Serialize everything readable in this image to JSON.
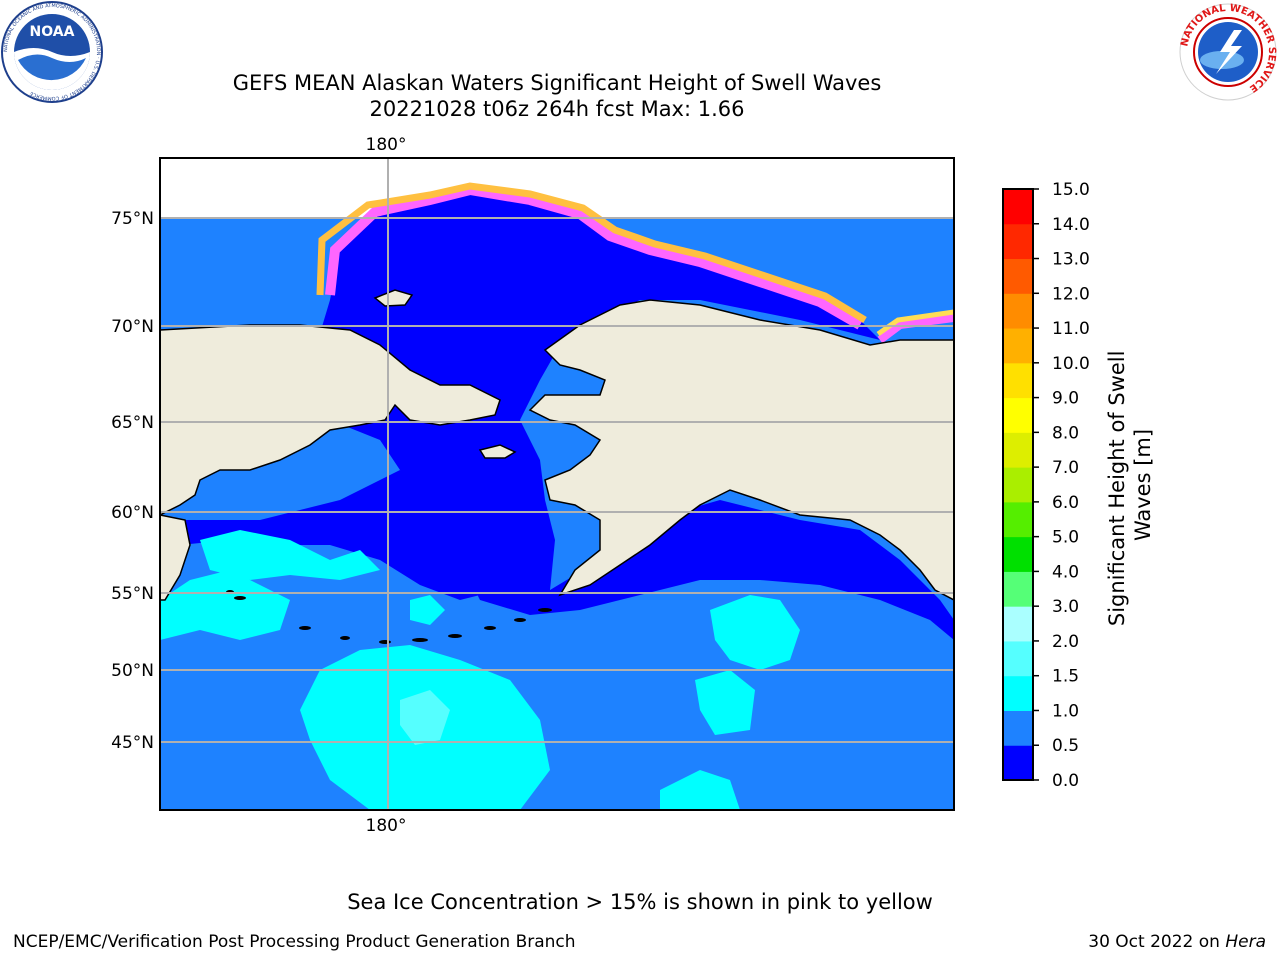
{
  "title": {
    "line1": "GEFS MEAN Alaskan Waters Significant Height of Swell Waves",
    "line2": "20221028 t06z 264h fcst   Max: 1.66"
  },
  "logos": {
    "left": {
      "text": "NOAA",
      "ring_text": "NATIONAL OCEANIC AND ATMOSPHERIC ADMINISTRATION · U.S. DEPARTMENT OF COMMERCE"
    },
    "right": {
      "ring_text": "NATIONAL WEATHER SERVICE"
    }
  },
  "map": {
    "lon_labels": [
      "180°",
      "180°"
    ],
    "lat_labels": [
      "75°N",
      "70°N",
      "65°N",
      "60°N",
      "55°N",
      "50°N",
      "45°N"
    ],
    "colors": {
      "land": "#efecdc",
      "ocean_0_0_5": "#0000ff",
      "ocean_0_5_1_0": "#1e82ff",
      "ocean_1_0_1_5": "#00ffff",
      "ice_pink": "#ff66ff",
      "ice_orange": "#ffc040",
      "ice_yellow": "#ffff00",
      "grid": "#b0b0b0"
    }
  },
  "colorbar": {
    "label_line1": "Significant Height of Swell",
    "label_line2": "Waves [m]",
    "ticks": [
      "15.0",
      "14.0",
      "13.0",
      "12.0",
      "11.0",
      "10.0",
      "9.0",
      "8.0",
      "7.0",
      "6.0",
      "5.0",
      "4.0",
      "3.0",
      "2.0",
      "1.5",
      "1.0",
      "0.5",
      "0.0"
    ],
    "colors_bottom_to_top": [
      "#0000ff",
      "#1e82ff",
      "#00ffff",
      "#55ffff",
      "#aaffff",
      "#55ff77",
      "#00e000",
      "#55ee00",
      "#aaee00",
      "#ddee00",
      "#ffff00",
      "#ffe000",
      "#ffb000",
      "#ff8c00",
      "#ff5a00",
      "#ff2800",
      "#ff0000"
    ]
  },
  "note": "Sea Ice Concentration > 15% is shown in pink to yellow",
  "footer": {
    "left": "NCEP/EMC/Verification Post Processing Product Generation Branch",
    "right_text": "30 Oct 2022 on ",
    "right_em": "Hera"
  }
}
